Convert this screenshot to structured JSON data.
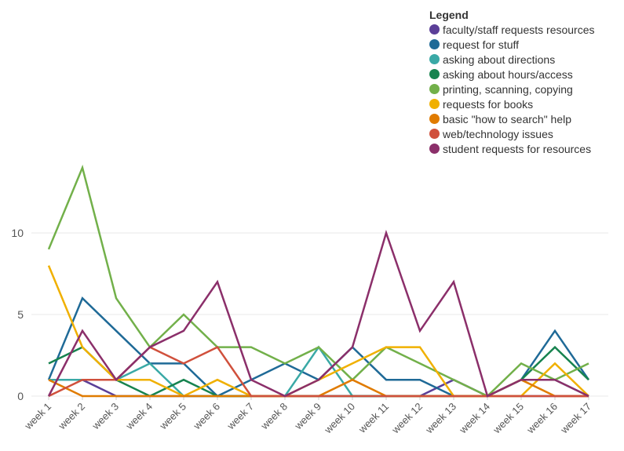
{
  "chart_data": {
    "type": "line",
    "title": "",
    "xlabel": "",
    "ylabel": "",
    "ylim": [
      0,
      14
    ],
    "yticks": [
      0,
      5,
      10
    ],
    "grid": true,
    "legend_title": "Legend",
    "legend_position": "top-right",
    "categories": [
      "week 1",
      "week 2",
      "week 3",
      "week 4",
      "week 5",
      "week 6",
      "week 7",
      "week 8",
      "week 9",
      "week 10",
      "week 11",
      "week 12",
      "week 13",
      "week 14",
      "week 15",
      "week 16",
      "week 17"
    ],
    "series": [
      {
        "name": "faculty/staff requests resources",
        "color": "#5b3f98",
        "values": [
          1,
          1,
          0,
          0,
          0,
          0,
          0,
          0,
          0,
          0,
          0,
          0,
          1,
          0,
          0,
          0,
          0
        ]
      },
      {
        "name": "request for stuff",
        "color": "#1f6a97",
        "values": [
          1,
          6,
          4,
          2,
          2,
          0,
          1,
          2,
          1,
          3,
          1,
          1,
          0,
          0,
          1,
          4,
          1
        ]
      },
      {
        "name": "asking about directions",
        "color": "#3aa9a6",
        "values": [
          1,
          1,
          1,
          2,
          0,
          0,
          0,
          0,
          3,
          0,
          0,
          0,
          0,
          0,
          1,
          1,
          0
        ]
      },
      {
        "name": "asking about hours/access",
        "color": "#17834f",
        "values": [
          2,
          3,
          1,
          0,
          1,
          0,
          0,
          0,
          0,
          0,
          0,
          0,
          0,
          0,
          1,
          3,
          1
        ]
      },
      {
        "name": "printing, scanning, copying",
        "color": "#72b04a",
        "values": [
          9,
          14,
          6,
          3,
          5,
          3,
          3,
          2,
          3,
          1,
          3,
          2,
          1,
          0,
          2,
          1,
          2
        ]
      },
      {
        "name": "requests for books",
        "color": "#f0b000",
        "values": [
          8,
          3,
          1,
          1,
          0,
          1,
          0,
          0,
          1,
          2,
          3,
          3,
          0,
          0,
          0,
          2,
          0
        ]
      },
      {
        "name": "basic \"how to search\" help",
        "color": "#e07b00",
        "values": [
          1,
          0,
          0,
          0,
          0,
          0,
          0,
          0,
          0,
          1,
          0,
          0,
          0,
          0,
          1,
          0,
          0
        ]
      },
      {
        "name": "web/technology issues",
        "color": "#d0503c",
        "values": [
          0,
          1,
          1,
          3,
          2,
          3,
          0,
          0,
          0,
          0,
          0,
          0,
          0,
          0,
          0,
          0,
          0
        ]
      },
      {
        "name": "student requests for resources",
        "color": "#8b2f6a",
        "values": [
          0,
          4,
          1,
          3,
          4,
          7,
          1,
          0,
          1,
          3,
          10,
          4,
          7,
          0,
          1,
          1,
          0
        ]
      }
    ]
  }
}
